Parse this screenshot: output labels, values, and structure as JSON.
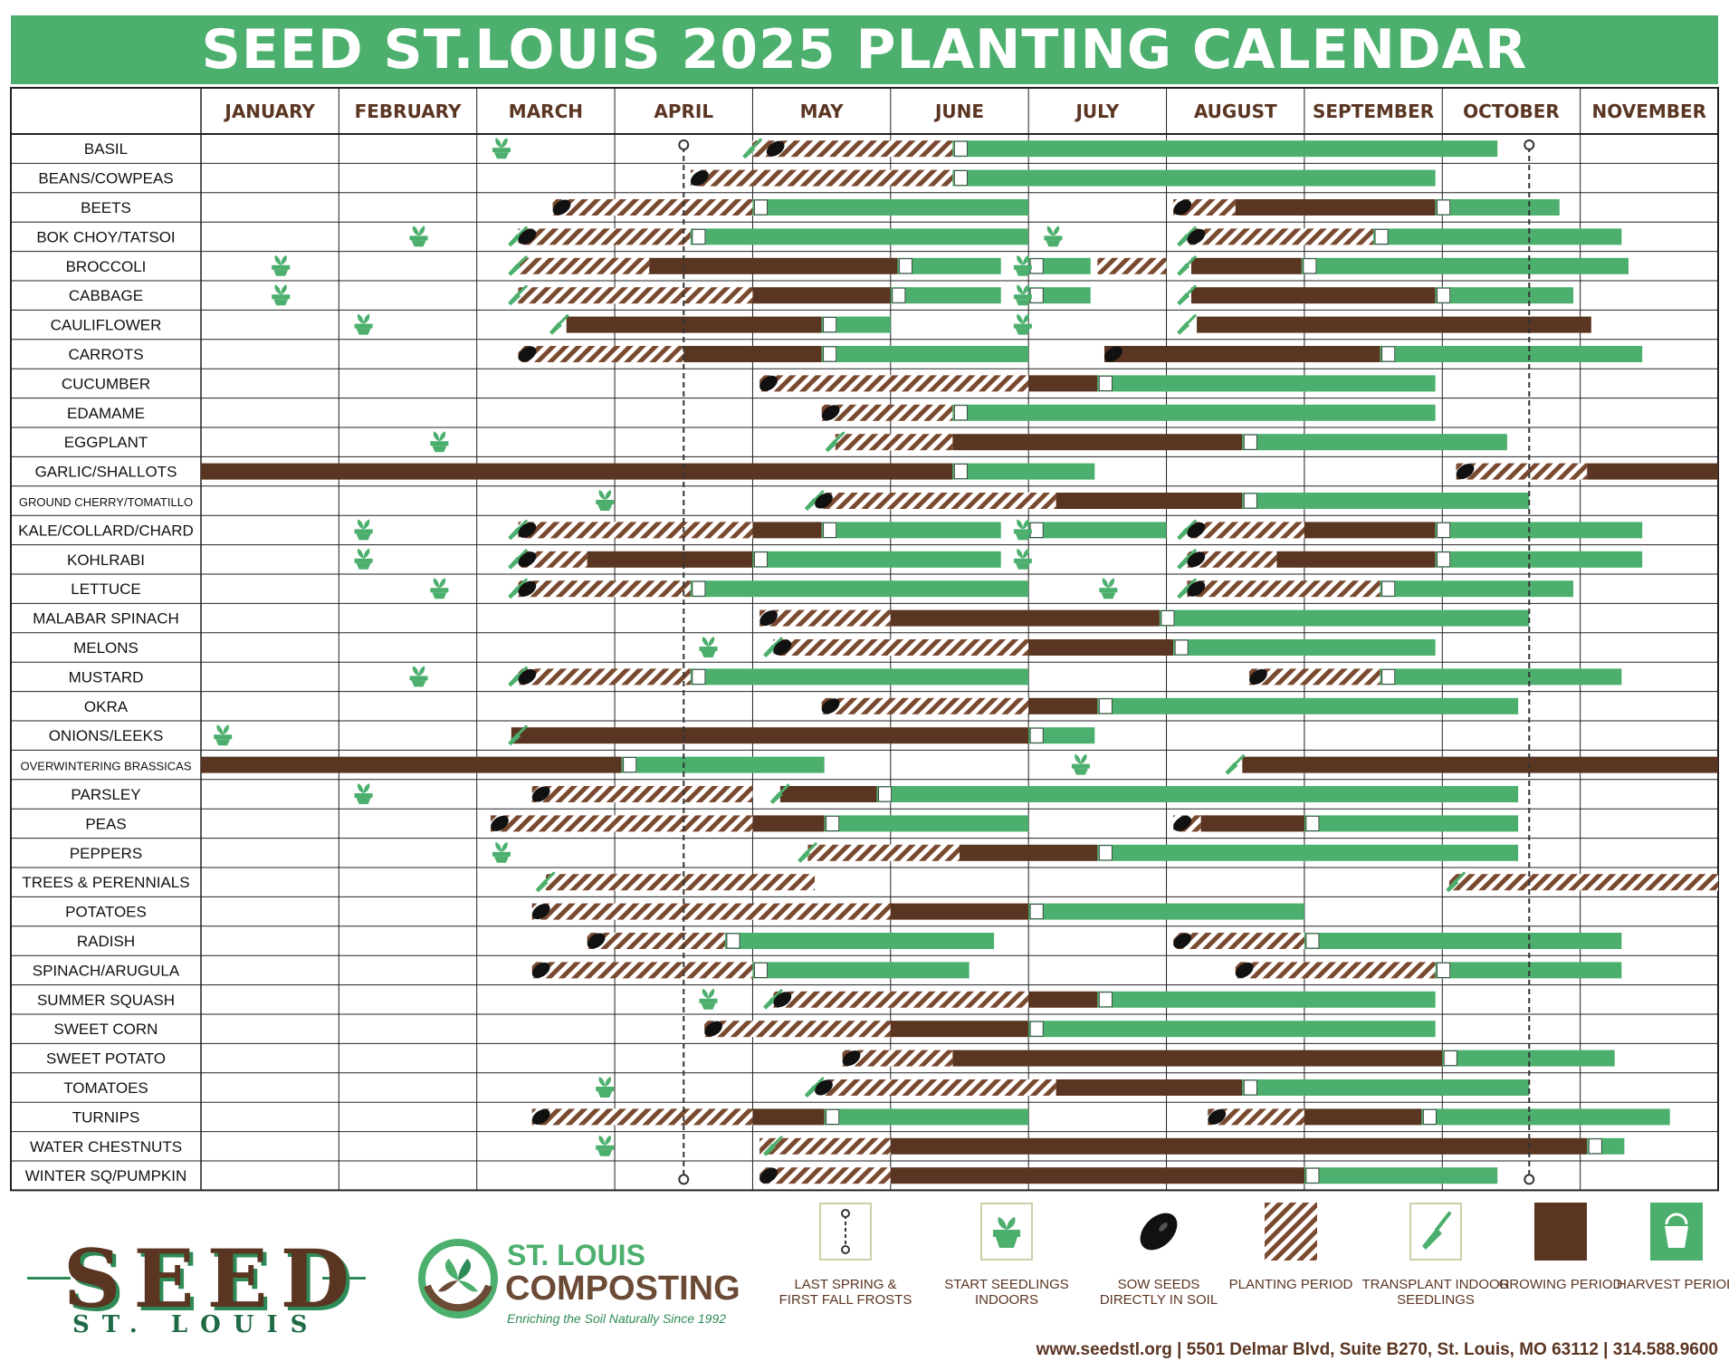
{
  "title": "SEED ST.LOUIS 2025 PLANTING CALENDAR",
  "colors": {
    "green": "#4caf6d",
    "brown": "#5a3522",
    "hatch": "#7a4a30",
    "frost_line": "#333333"
  },
  "chart_data": {
    "type": "gantt",
    "months": [
      "JANUARY",
      "FEBRUARY",
      "MARCH",
      "APRIL",
      "MAY",
      "JUNE",
      "JULY",
      "AUGUST",
      "SEPTEMBER",
      "OCTOBER",
      "NOVEMBER"
    ],
    "frost_dates": {
      "last_spring": 3.5,
      "first_fall": 9.63
    },
    "rows": [
      {
        "name": "BASIL",
        "planting": [
          [
            4,
            5.45
          ]
        ],
        "growing": [],
        "harvest": [
          [
            5.45,
            9.4
          ]
        ],
        "seedlings": [
          2.1
        ],
        "sow": [
          4.1
        ],
        "transplant": [
          3.9
        ]
      },
      {
        "name": "BEANS/COWPEAS",
        "planting": [
          [
            3.55,
            5.45
          ]
        ],
        "growing": [],
        "harvest": [
          [
            5.45,
            8.95
          ]
        ],
        "seedlings": [],
        "sow": [
          3.55
        ],
        "transplant": []
      },
      {
        "name": "BEETS",
        "planting": [
          [
            2.55,
            4
          ],
          [
            7.05,
            7.5
          ]
        ],
        "growing": [
          [
            7.5,
            8.95
          ]
        ],
        "harvest": [
          [
            4,
            6
          ],
          [
            8.95,
            9.85
          ]
        ],
        "seedlings": [],
        "sow": [
          2.55,
          7.05
        ],
        "transplant": []
      },
      {
        "name": "BOK CHOY/TATSOI",
        "planting": [
          [
            2.3,
            3.55
          ],
          [
            7.15,
            8.5
          ]
        ],
        "growing": [],
        "harvest": [
          [
            3.55,
            6
          ],
          [
            8.5,
            10.3
          ]
        ],
        "seedlings": [
          1.5,
          6.1
        ],
        "sow": [
          2.3,
          7.15
        ],
        "transplant": [
          2.2,
          7.05
        ]
      },
      {
        "name": "BROCCOLI",
        "planting": [
          [
            2.3,
            3.25
          ],
          [
            6.5,
            7
          ]
        ],
        "growing": [
          [
            3.25,
            5.05
          ],
          [
            7.18,
            7.98
          ]
        ],
        "harvest": [
          [
            5.05,
            5.8
          ],
          [
            6,
            6.45
          ],
          [
            7.98,
            10.35
          ]
        ],
        "seedlings": [
          0.5,
          5.88
        ],
        "sow": [],
        "transplant": [
          2.2,
          7.05
        ]
      },
      {
        "name": "CABBAGE",
        "planting": [
          [
            2.3,
            4
          ]
        ],
        "growing": [
          [
            4,
            5
          ],
          [
            7.18,
            8.95
          ]
        ],
        "harvest": [
          [
            5,
            5.8
          ],
          [
            6,
            6.45
          ],
          [
            8.95,
            9.95
          ]
        ],
        "seedlings": [
          0.5,
          5.88
        ],
        "sow": [],
        "transplant": [
          2.2,
          7.05
        ]
      },
      {
        "name": "CAULIFLOWER",
        "planting": [],
        "growing": [
          [
            2.65,
            4.5
          ],
          [
            7.22,
            10.08
          ]
        ],
        "harvest": [
          [
            4.5,
            5
          ]
        ],
        "seedlings": [
          1.1,
          5.88
        ],
        "sow": [],
        "transplant": [
          2.5,
          7.05
        ]
      },
      {
        "name": "CARROTS",
        "planting": [
          [
            2.3,
            3.5
          ]
        ],
        "growing": [
          [
            3.5,
            4.5
          ],
          [
            6.55,
            8.55
          ]
        ],
        "harvest": [
          [
            4.5,
            6
          ],
          [
            8.55,
            10.45
          ]
        ],
        "seedlings": [],
        "sow": [
          2.3,
          6.55
        ],
        "transplant": []
      },
      {
        "name": "CUCUMBER",
        "planting": [
          [
            4.05,
            6
          ]
        ],
        "growing": [
          [
            6,
            6.5
          ]
        ],
        "harvest": [
          [
            6.5,
            8.95
          ]
        ],
        "seedlings": [],
        "sow": [
          4.05
        ],
        "transplant": []
      },
      {
        "name": "EDAMAME",
        "planting": [
          [
            4.5,
            5.45
          ]
        ],
        "growing": [],
        "harvest": [
          [
            5.45,
            8.95
          ]
        ],
        "seedlings": [],
        "sow": [
          4.5
        ],
        "transplant": []
      },
      {
        "name": "EGGPLANT",
        "planting": [
          [
            4.6,
            5.45
          ]
        ],
        "growing": [
          [
            5.45,
            7.55
          ]
        ],
        "harvest": [
          [
            7.55,
            9.47
          ]
        ],
        "seedlings": [
          1.65
        ],
        "sow": [],
        "transplant": [
          4.5
        ]
      },
      {
        "name": "GARLIC/SHALLOTS",
        "planting": [
          [
            9.1,
            10.05
          ]
        ],
        "growing": [
          [
            0,
            5.45
          ],
          [
            10.05,
            11
          ]
        ],
        "harvest": [
          [
            5.45,
            6.48
          ]
        ],
        "seedlings": [],
        "sow": [
          9.1
        ],
        "transplant": []
      },
      {
        "name": "GROUND CHERRY/TOMATILLO",
        "planting": [
          [
            4.5,
            6.2
          ]
        ],
        "growing": [
          [
            6.2,
            7.55
          ]
        ],
        "harvest": [
          [
            7.55,
            9.63
          ]
        ],
        "seedlings": [
          2.85
        ],
        "sow": [
          4.45
        ],
        "transplant": [
          4.35
        ]
      },
      {
        "name": "KALE/COLLARD/CHARD",
        "planting": [
          [
            2.3,
            4
          ],
          [
            7.15,
            8
          ]
        ],
        "growing": [
          [
            4,
            4.5
          ],
          [
            8,
            8.95
          ]
        ],
        "harvest": [
          [
            4.5,
            5.8
          ],
          [
            6,
            7
          ],
          [
            8.95,
            10.45
          ]
        ],
        "seedlings": [
          1.1,
          5.88
        ],
        "sow": [
          2.3,
          7.15
        ],
        "transplant": [
          2.2,
          7.05
        ]
      },
      {
        "name": "KOHLRABI",
        "planting": [
          [
            2.3,
            2.8
          ],
          [
            7.15,
            7.8
          ]
        ],
        "growing": [
          [
            2.8,
            4
          ],
          [
            7.8,
            8.95
          ]
        ],
        "harvest": [
          [
            4,
            5.8
          ],
          [
            8.95,
            10.45
          ]
        ],
        "seedlings": [
          1.1,
          5.88
        ],
        "sow": [
          2.3,
          7.15
        ],
        "transplant": [
          2.2,
          7.05
        ]
      },
      {
        "name": "LETTUCE",
        "planting": [
          [
            2.3,
            3.55
          ],
          [
            7.15,
            8.55
          ]
        ],
        "growing": [],
        "harvest": [
          [
            3.55,
            6
          ],
          [
            8.55,
            9.95
          ]
        ],
        "seedlings": [
          1.65,
          6.5
        ],
        "sow": [
          2.3,
          7.15
        ],
        "transplant": [
          2.2,
          7.05
        ]
      },
      {
        "name": "MALABAR SPINACH",
        "planting": [
          [
            4.05,
            5
          ]
        ],
        "growing": [
          [
            5,
            6.95
          ]
        ],
        "harvest": [
          [
            6.95,
            9.63
          ]
        ],
        "seedlings": [],
        "sow": [
          4.05
        ],
        "transplant": []
      },
      {
        "name": "MELONS",
        "planting": [
          [
            4.15,
            6
          ]
        ],
        "growing": [
          [
            6,
            7.05
          ]
        ],
        "harvest": [
          [
            7.05,
            8.95
          ]
        ],
        "seedlings": [
          3.6
        ],
        "sow": [
          4.15
        ],
        "transplant": [
          4.05
        ]
      },
      {
        "name": "MUSTARD",
        "planting": [
          [
            2.3,
            3.55
          ],
          [
            7.6,
            8.55
          ]
        ],
        "growing": [],
        "harvest": [
          [
            3.55,
            6
          ],
          [
            8.55,
            10.3
          ]
        ],
        "seedlings": [
          1.5
        ],
        "sow": [
          2.3,
          7.6
        ],
        "transplant": [
          2.2
        ]
      },
      {
        "name": "OKRA",
        "planting": [
          [
            4.5,
            6
          ]
        ],
        "growing": [
          [
            6,
            6.5
          ]
        ],
        "harvest": [
          [
            6.5,
            9.55
          ]
        ],
        "seedlings": [],
        "sow": [
          4.5
        ],
        "transplant": []
      },
      {
        "name": "ONIONS/LEEKS",
        "planting": [],
        "growing": [
          [
            2.25,
            6
          ]
        ],
        "harvest": [
          [
            6,
            6.48
          ]
        ],
        "seedlings": [
          0.08
        ],
        "sow": [],
        "transplant": [
          2.2
        ]
      },
      {
        "name": "OVERWINTERING BRASSICAS",
        "planting": [],
        "growing": [
          [
            0,
            3.05
          ],
          [
            7.55,
            11
          ]
        ],
        "harvest": [
          [
            3.05,
            4.52
          ]
        ],
        "seedlings": [
          6.3
        ],
        "sow": [],
        "transplant": [
          7.4
        ]
      },
      {
        "name": "PARSLEY",
        "planting": [
          [
            2.4,
            4
          ]
        ],
        "growing": [
          [
            4.2,
            4.9
          ]
        ],
        "harvest": [
          [
            4.9,
            9.55
          ]
        ],
        "seedlings": [
          1.1
        ],
        "sow": [
          2.4
        ],
        "transplant": [
          4.1
        ]
      },
      {
        "name": "PEAS",
        "planting": [
          [
            2.1,
            4
          ],
          [
            7.05,
            7.25
          ]
        ],
        "growing": [
          [
            4,
            4.52
          ],
          [
            7.25,
            8
          ]
        ],
        "harvest": [
          [
            4.52,
            6
          ],
          [
            8,
            9.55
          ]
        ],
        "seedlings": [],
        "sow": [
          2.1,
          7.05
        ],
        "transplant": []
      },
      {
        "name": "PEPPERS",
        "planting": [
          [
            4.4,
            5.5
          ]
        ],
        "growing": [
          [
            5.5,
            6.5
          ]
        ],
        "harvest": [
          [
            6.5,
            9.55
          ]
        ],
        "seedlings": [
          2.1
        ],
        "sow": [],
        "transplant": [
          4.3
        ]
      },
      {
        "name": "TREES & PERENNIALS",
        "planting": [
          [
            2.5,
            4.45
          ],
          [
            9.05,
            11
          ]
        ],
        "growing": [],
        "harvest": [],
        "seedlings": [],
        "sow": [],
        "transplant": [
          2.4,
          9
        ]
      },
      {
        "name": "POTATOES",
        "planting": [
          [
            2.4,
            5
          ]
        ],
        "growing": [
          [
            5,
            6
          ]
        ],
        "harvest": [
          [
            6,
            8
          ]
        ],
        "seedlings": [],
        "sow": [
          2.4
        ],
        "transplant": []
      },
      {
        "name": "RADISH",
        "planting": [
          [
            2.8,
            3.8
          ],
          [
            7.05,
            8
          ]
        ],
        "growing": [],
        "harvest": [
          [
            3.8,
            5.75
          ],
          [
            8,
            10.3
          ]
        ],
        "seedlings": [],
        "sow": [
          2.8,
          7.05
        ],
        "transplant": []
      },
      {
        "name": "SPINACH/ARUGULA",
        "planting": [
          [
            2.4,
            4
          ],
          [
            7.5,
            8.95
          ]
        ],
        "growing": [],
        "harvest": [
          [
            4,
            5.57
          ],
          [
            8.95,
            10.3
          ]
        ],
        "seedlings": [],
        "sow": [
          2.4,
          7.5
        ],
        "transplant": []
      },
      {
        "name": "SUMMER SQUASH",
        "planting": [
          [
            4.15,
            6
          ]
        ],
        "growing": [
          [
            6,
            6.5
          ]
        ],
        "harvest": [
          [
            6.5,
            8.95
          ]
        ],
        "seedlings": [
          3.6
        ],
        "sow": [
          4.15
        ],
        "transplant": [
          4.05
        ]
      },
      {
        "name": "SWEET CORN",
        "planting": [
          [
            3.65,
            5
          ]
        ],
        "growing": [
          [
            5,
            6
          ]
        ],
        "harvest": [
          [
            6,
            8.95
          ]
        ],
        "seedlings": [],
        "sow": [
          3.65
        ],
        "transplant": []
      },
      {
        "name": "SWEET POTATO",
        "planting": [
          [
            4.65,
            5.45
          ]
        ],
        "growing": [
          [
            5.45,
            9
          ]
        ],
        "harvest": [
          [
            9,
            10.25
          ]
        ],
        "seedlings": [],
        "sow": [
          4.65
        ],
        "transplant": []
      },
      {
        "name": "TOMATOES",
        "planting": [
          [
            4.5,
            6.2
          ]
        ],
        "growing": [
          [
            6.2,
            7.55
          ]
        ],
        "harvest": [
          [
            7.55,
            9.63
          ]
        ],
        "seedlings": [
          2.85
        ],
        "sow": [
          4.45
        ],
        "transplant": [
          4.35
        ]
      },
      {
        "name": "TURNIPS",
        "planting": [
          [
            2.4,
            4
          ],
          [
            7.3,
            8
          ]
        ],
        "growing": [
          [
            4,
            4.52
          ],
          [
            8,
            8.85
          ]
        ],
        "harvest": [
          [
            4.52,
            6
          ],
          [
            8.85,
            10.65
          ]
        ],
        "seedlings": [],
        "sow": [
          2.4,
          7.3
        ],
        "transplant": []
      },
      {
        "name": "WATER CHESTNUTS",
        "planting": [
          [
            4.05,
            5
          ]
        ],
        "growing": [
          [
            5,
            10.05
          ]
        ],
        "harvest": [
          [
            10.05,
            10.32
          ]
        ],
        "seedlings": [
          2.85
        ],
        "sow": [],
        "transplant": [
          4.05
        ]
      },
      {
        "name": "WINTER SQ/PUMPKIN",
        "planting": [
          [
            4.05,
            5
          ]
        ],
        "growing": [
          [
            5,
            8
          ]
        ],
        "harvest": [
          [
            8,
            9.4
          ]
        ],
        "seedlings": [],
        "sow": [
          4.05
        ],
        "transplant": []
      }
    ]
  },
  "legend": {
    "frost": "LAST SPRING & FIRST FALL FROSTS",
    "seedlings": "START SEEDLINGS INDOORS",
    "sow": "SOW SEEDS DIRECTLY IN SOIL",
    "planting": "PLANTING PERIOD",
    "transplant": "TRANSPLANT INDOOR SEEDLINGS",
    "growing": "GROWING PERIOD",
    "harvest": "HARVEST PERIOD"
  },
  "logos": {
    "seed_word": "SEED",
    "seed_sub": "ST. LOUIS",
    "compost_line1": "ST. LOUIS",
    "compost_line2": "COMPOSTING",
    "compost_tagline": "Enriching the Soil Naturally Since 1992"
  },
  "footer": "www.seedstl.org  |  5501 Delmar Blvd, Suite B270, St. Louis, MO 63112  |  314.588.9600"
}
